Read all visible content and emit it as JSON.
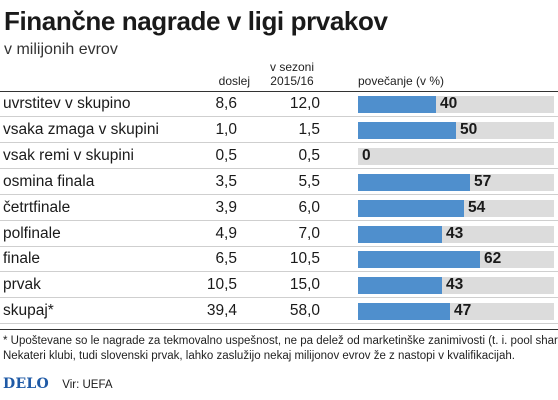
{
  "title": "Finančne nagrade v ligi prvakov",
  "subtitle": "v milijonih evrov",
  "headers": {
    "doslej": "doslej",
    "sezona_line1": "v sezoni",
    "sezona_line2": "2015/16",
    "povecanje": "povečanje (v %)"
  },
  "rows": [
    {
      "label": "uvrstitev v skupino",
      "doslej": "8,6",
      "sezona": "12,0",
      "pct": "40"
    },
    {
      "label": "vsaka zmaga v skupini",
      "doslej": "1,0",
      "sezona": "1,5",
      "pct": "50"
    },
    {
      "label": "vsak remi v skupini",
      "doslej": "0,5",
      "sezona": "0,5",
      "pct": "0"
    },
    {
      "label": "osmina finala",
      "doslej": "3,5",
      "sezona": "5,5",
      "pct": "57"
    },
    {
      "label": "četrtfinale",
      "doslej": "3,9",
      "sezona": "6,0",
      "pct": "54"
    },
    {
      "label": "polfinale",
      "doslej": "4,9",
      "sezona": "7,0",
      "pct": "43"
    },
    {
      "label": "finale",
      "doslej": "6,5",
      "sezona": "10,5",
      "pct": "62"
    },
    {
      "label": "prvak",
      "doslej": "10,5",
      "sezona": "15,0",
      "pct": "43"
    },
    {
      "label": "skupaj*",
      "doslej": "39,4",
      "sezona": "58,0",
      "pct": "47"
    }
  ],
  "notes": {
    "line1": "* Upoštevane so le nagrade za tekmovalno uspešnost, ne pa delež od marketinške zanimivosti (t. i. pool share).",
    "line2": "Nekateri klubi, tudi slovenski prvak, lahko zaslužijo nekaj milijonov evrov že z nastopi v kvalifikacijah."
  },
  "source": {
    "logo": "DELO",
    "text": "Vir: UEFA"
  },
  "colors": {
    "bar": "#4f8fcd",
    "track": "#dcdcdc",
    "logo": "#1f5aa6"
  },
  "chart_data": {
    "type": "bar",
    "orientation": "horizontal",
    "title": "Finančne nagrade v ligi prvakov",
    "subtitle": "v milijonih evrov",
    "categories": [
      "uvrstitev v skupino",
      "vsaka zmaga v skupini",
      "vsak remi v skupini",
      "osmina finala",
      "četrtfinale",
      "polfinale",
      "finale",
      "prvak",
      "skupaj*"
    ],
    "series": [
      {
        "name": "povečanje (v %)",
        "values": [
          40,
          50,
          0,
          57,
          54,
          43,
          62,
          43,
          47
        ]
      }
    ],
    "table_columns": [
      {
        "name": "doslej",
        "values": [
          8.6,
          1.0,
          0.5,
          3.5,
          3.9,
          4.9,
          6.5,
          10.5,
          39.4
        ]
      },
      {
        "name": "v sezoni 2015/16",
        "values": [
          12.0,
          1.5,
          0.5,
          5.5,
          6.0,
          7.0,
          10.5,
          15.0,
          58.0
        ]
      }
    ],
    "xlim": [
      0,
      100
    ],
    "grid": false,
    "legend": "none"
  }
}
